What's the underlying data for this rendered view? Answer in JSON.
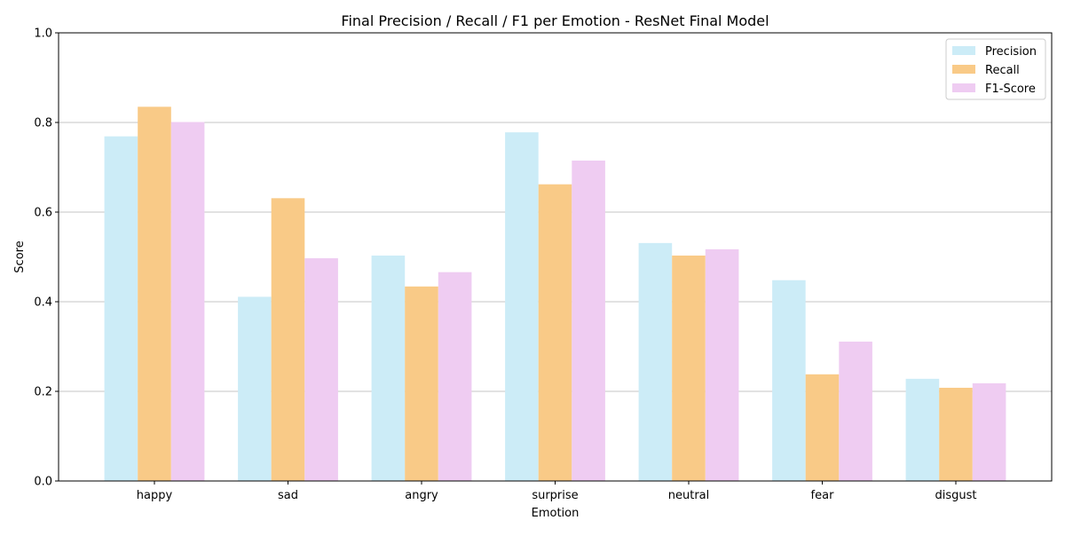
{
  "chart_data": {
    "type": "bar",
    "title": "Final Precision / Recall / F1 per Emotion - ResNet Final Model",
    "xlabel": "Emotion",
    "ylabel": "Score",
    "ylim": [
      0,
      1.0
    ],
    "yticks": [
      "0.0",
      "0.2",
      "0.4",
      "0.6",
      "0.8",
      "1.0"
    ],
    "grid": "horizontal",
    "legend_position": "top-right",
    "categories": [
      "happy",
      "sad",
      "angry",
      "surprise",
      "neutral",
      "fear",
      "disgust"
    ],
    "series": [
      {
        "name": "Precision",
        "color": "#ccecf7",
        "values": [
          0.769,
          0.411,
          0.503,
          0.778,
          0.531,
          0.448,
          0.228
        ]
      },
      {
        "name": "Recall",
        "color": "#f9ca87",
        "values": [
          0.835,
          0.631,
          0.434,
          0.662,
          0.503,
          0.238,
          0.208
        ]
      },
      {
        "name": "F1-Score",
        "color": "#efccf2",
        "values": [
          0.801,
          0.497,
          0.466,
          0.715,
          0.517,
          0.311,
          0.218
        ]
      }
    ]
  }
}
